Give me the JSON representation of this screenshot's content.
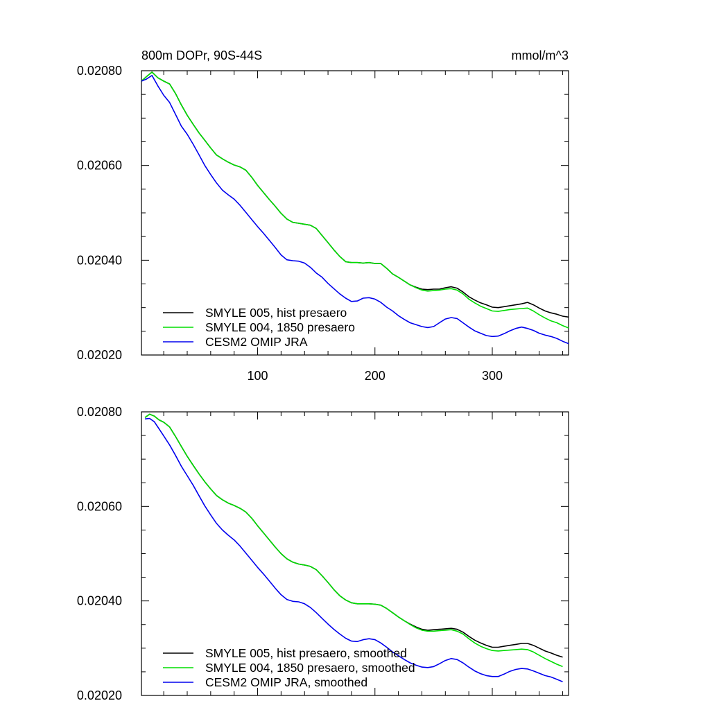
{
  "chart_data": [
    {
      "type": "line",
      "title": "800m DOPr, 90S-44S",
      "units": "mmol/m^3",
      "xlim": [
        1,
        365
      ],
      "ylim": [
        0.0202,
        0.0208
      ],
      "xticks": [
        100,
        200,
        300
      ],
      "xtick_labels": [
        "100",
        "200",
        "300"
      ],
      "yticks": [
        0.0202,
        0.0204,
        0.0206,
        0.0208
      ],
      "ytick_labels": [
        "0.02020",
        "0.02040",
        "0.02060",
        "0.02080"
      ],
      "legend_position": "bottom-left",
      "series": [
        {
          "name": "SMYLE 005, hist presaero",
          "color": "#000000",
          "x": [
            1,
            5,
            10,
            15,
            20,
            25,
            30,
            35,
            40,
            45,
            50,
            55,
            60,
            65,
            70,
            75,
            80,
            85,
            90,
            95,
            100,
            105,
            110,
            115,
            120,
            125,
            130,
            135,
            140,
            145,
            150,
            155,
            160,
            165,
            170,
            175,
            180,
            185,
            190,
            195,
            200,
            205,
            210,
            215,
            220,
            225,
            230,
            235,
            240,
            245,
            250,
            255,
            260,
            265,
            270,
            275,
            280,
            285,
            290,
            295,
            300,
            305,
            310,
            315,
            320,
            325,
            330,
            335,
            340,
            345,
            350,
            355,
            360,
            365
          ],
          "y": [
            0.020778,
            0.020787,
            0.020797,
            0.020785,
            0.020778,
            0.020772,
            0.020752,
            0.020728,
            0.020706,
            0.020687,
            0.020669,
            0.020653,
            0.020637,
            0.020622,
            0.020614,
            0.020607,
            0.020601,
            0.020597,
            0.02059,
            0.020575,
            0.020558,
            0.020543,
            0.020528,
            0.020514,
            0.020499,
            0.020487,
            0.02048,
            0.020478,
            0.020476,
            0.020474,
            0.020467,
            0.020452,
            0.020437,
            0.020422,
            0.020408,
            0.020397,
            0.020395,
            0.020395,
            0.020394,
            0.020395,
            0.020393,
            0.020393,
            0.020383,
            0.020371,
            0.020364,
            0.020356,
            0.020348,
            0.020343,
            0.020339,
            0.020338,
            0.020339,
            0.020339,
            0.020342,
            0.020344,
            0.020341,
            0.020333,
            0.020323,
            0.020316,
            0.02031,
            0.020306,
            0.020301,
            0.0203,
            0.020302,
            0.020304,
            0.020306,
            0.020308,
            0.020311,
            0.020306,
            0.020299,
            0.020293,
            0.020289,
            0.020286,
            0.020282,
            0.02028
          ]
        },
        {
          "name": "SMYLE 004, 1850 presaero",
          "color": "#00dd00",
          "x": [
            1,
            5,
            10,
            15,
            20,
            25,
            30,
            35,
            40,
            45,
            50,
            55,
            60,
            65,
            70,
            75,
            80,
            85,
            90,
            95,
            100,
            105,
            110,
            115,
            120,
            125,
            130,
            135,
            140,
            145,
            150,
            155,
            160,
            165,
            170,
            175,
            180,
            185,
            190,
            195,
            200,
            205,
            210,
            215,
            220,
            225,
            230,
            235,
            240,
            245,
            250,
            255,
            260,
            265,
            270,
            275,
            280,
            285,
            290,
            295,
            300,
            305,
            310,
            315,
            320,
            325,
            330,
            335,
            340,
            345,
            350,
            355,
            360,
            365
          ],
          "y": [
            0.020778,
            0.020787,
            0.020797,
            0.020785,
            0.020778,
            0.020772,
            0.020752,
            0.020728,
            0.020706,
            0.020687,
            0.020669,
            0.020653,
            0.020637,
            0.020622,
            0.020614,
            0.020607,
            0.020601,
            0.020597,
            0.02059,
            0.020575,
            0.020558,
            0.020543,
            0.020528,
            0.020514,
            0.020499,
            0.020487,
            0.02048,
            0.020478,
            0.020476,
            0.020474,
            0.020467,
            0.020452,
            0.020437,
            0.020422,
            0.020408,
            0.020397,
            0.020395,
            0.020395,
            0.020394,
            0.020395,
            0.020393,
            0.020393,
            0.020383,
            0.020371,
            0.020364,
            0.020356,
            0.020348,
            0.020342,
            0.020337,
            0.020335,
            0.020336,
            0.020337,
            0.020339,
            0.02034,
            0.020337,
            0.020329,
            0.020318,
            0.02031,
            0.020303,
            0.020298,
            0.020293,
            0.020292,
            0.020294,
            0.020296,
            0.020297,
            0.020298,
            0.020299,
            0.020293,
            0.020285,
            0.020278,
            0.020272,
            0.020268,
            0.020262,
            0.020257
          ]
        },
        {
          "name": "CESM2 OMIP JRA",
          "color": "#0000ee",
          "x": [
            1,
            5,
            10,
            15,
            20,
            25,
            30,
            35,
            40,
            45,
            50,
            55,
            60,
            65,
            70,
            75,
            80,
            85,
            90,
            95,
            100,
            105,
            110,
            115,
            120,
            125,
            130,
            135,
            140,
            145,
            150,
            155,
            160,
            165,
            170,
            175,
            180,
            185,
            190,
            195,
            200,
            205,
            210,
            215,
            220,
            225,
            230,
            235,
            240,
            245,
            250,
            255,
            260,
            265,
            270,
            275,
            280,
            285,
            290,
            295,
            300,
            305,
            310,
            315,
            320,
            325,
            330,
            335,
            340,
            345,
            350,
            355,
            360,
            365
          ],
          "y": [
            0.020778,
            0.020782,
            0.02079,
            0.020768,
            0.020748,
            0.020733,
            0.020708,
            0.020683,
            0.020666,
            0.020645,
            0.020623,
            0.0206,
            0.020581,
            0.020563,
            0.020548,
            0.020538,
            0.020529,
            0.020516,
            0.020501,
            0.020486,
            0.020471,
            0.020457,
            0.020442,
            0.020427,
            0.020411,
            0.020401,
            0.020399,
            0.020398,
            0.020394,
            0.020385,
            0.020373,
            0.020364,
            0.020351,
            0.02034,
            0.020329,
            0.02032,
            0.020313,
            0.020314,
            0.02032,
            0.020321,
            0.020318,
            0.020311,
            0.020301,
            0.020293,
            0.020283,
            0.020275,
            0.020268,
            0.020264,
            0.02026,
            0.020258,
            0.02026,
            0.020268,
            0.020276,
            0.020279,
            0.020277,
            0.020268,
            0.020259,
            0.020251,
            0.020246,
            0.020241,
            0.020239,
            0.02024,
            0.020245,
            0.020251,
            0.020256,
            0.020259,
            0.020256,
            0.020252,
            0.020246,
            0.020242,
            0.020239,
            0.020235,
            0.020229,
            0.020224
          ]
        }
      ]
    },
    {
      "type": "line",
      "xlim": [
        1,
        365
      ],
      "ylim": [
        0.0202,
        0.0208
      ],
      "xticks": [
        100,
        200,
        300
      ],
      "yticks": [
        0.0202,
        0.0204,
        0.0206,
        0.0208
      ],
      "ytick_labels": [
        "0.02020",
        "0.02040",
        "0.02060",
        "0.02080"
      ],
      "legend_position": "bottom-left",
      "series": [
        {
          "name": "SMYLE 005, hist presaero, smoothed",
          "color": "#000000",
          "x": [
            4,
            8,
            12,
            16,
            20,
            25,
            30,
            35,
            40,
            45,
            50,
            55,
            60,
            65,
            70,
            75,
            80,
            85,
            90,
            95,
            100,
            105,
            110,
            115,
            120,
            125,
            130,
            135,
            140,
            145,
            150,
            155,
            160,
            165,
            170,
            175,
            180,
            185,
            190,
            195,
            200,
            205,
            210,
            215,
            220,
            225,
            230,
            235,
            240,
            245,
            250,
            255,
            260,
            265,
            270,
            275,
            280,
            285,
            290,
            295,
            300,
            305,
            310,
            315,
            320,
            325,
            330,
            335,
            340,
            345,
            350,
            355,
            360
          ],
          "y": [
            0.020788,
            0.020795,
            0.020791,
            0.020783,
            0.020778,
            0.020768,
            0.020748,
            0.020727,
            0.020706,
            0.020687,
            0.020669,
            0.020652,
            0.020637,
            0.020623,
            0.020614,
            0.020607,
            0.020602,
            0.020596,
            0.020588,
            0.020575,
            0.020559,
            0.020544,
            0.020529,
            0.020514,
            0.0205,
            0.020489,
            0.020482,
            0.020478,
            0.020476,
            0.020473,
            0.020466,
            0.020453,
            0.020439,
            0.020424,
            0.020411,
            0.020402,
            0.020396,
            0.020394,
            0.020394,
            0.020394,
            0.020393,
            0.020391,
            0.020384,
            0.020375,
            0.020366,
            0.020358,
            0.020351,
            0.020345,
            0.02034,
            0.020338,
            0.020339,
            0.02034,
            0.020341,
            0.020342,
            0.02034,
            0.020334,
            0.020325,
            0.020317,
            0.020311,
            0.020306,
            0.020302,
            0.020302,
            0.020304,
            0.020306,
            0.020308,
            0.02031,
            0.02031,
            0.020306,
            0.0203,
            0.020294,
            0.02029,
            0.020285,
            0.020281
          ]
        },
        {
          "name": "SMYLE 004, 1850 presaero, smoothed",
          "color": "#00dd00",
          "x": [
            4,
            8,
            12,
            16,
            20,
            25,
            30,
            35,
            40,
            45,
            50,
            55,
            60,
            65,
            70,
            75,
            80,
            85,
            90,
            95,
            100,
            105,
            110,
            115,
            120,
            125,
            130,
            135,
            140,
            145,
            150,
            155,
            160,
            165,
            170,
            175,
            180,
            185,
            190,
            195,
            200,
            205,
            210,
            215,
            220,
            225,
            230,
            235,
            240,
            245,
            250,
            255,
            260,
            265,
            270,
            275,
            280,
            285,
            290,
            295,
            300,
            305,
            310,
            315,
            320,
            325,
            330,
            335,
            340,
            345,
            350,
            355,
            360
          ],
          "y": [
            0.020788,
            0.020795,
            0.020791,
            0.020783,
            0.020778,
            0.020768,
            0.020748,
            0.020727,
            0.020706,
            0.020687,
            0.020669,
            0.020652,
            0.020637,
            0.020623,
            0.020614,
            0.020607,
            0.020602,
            0.020596,
            0.020588,
            0.020575,
            0.020559,
            0.020544,
            0.020529,
            0.020514,
            0.0205,
            0.020489,
            0.020482,
            0.020478,
            0.020476,
            0.020473,
            0.020466,
            0.020453,
            0.020439,
            0.020424,
            0.020411,
            0.020402,
            0.020396,
            0.020394,
            0.020394,
            0.020394,
            0.020393,
            0.020391,
            0.020384,
            0.020375,
            0.020366,
            0.020358,
            0.02035,
            0.020343,
            0.020338,
            0.020336,
            0.020336,
            0.020337,
            0.020338,
            0.020339,
            0.020336,
            0.02033,
            0.02032,
            0.020311,
            0.020304,
            0.020299,
            0.020295,
            0.020294,
            0.020295,
            0.020296,
            0.020297,
            0.020298,
            0.020297,
            0.020292,
            0.020285,
            0.020278,
            0.020272,
            0.020266,
            0.020261
          ]
        },
        {
          "name": "CESM2 OMIP JRA, smoothed",
          "color": "#0000ee",
          "x": [
            4,
            8,
            12,
            16,
            20,
            25,
            30,
            35,
            40,
            45,
            50,
            55,
            60,
            65,
            70,
            75,
            80,
            85,
            90,
            95,
            100,
            105,
            110,
            115,
            120,
            125,
            130,
            135,
            140,
            145,
            150,
            155,
            160,
            165,
            170,
            175,
            180,
            185,
            190,
            195,
            200,
            205,
            210,
            215,
            220,
            225,
            230,
            235,
            240,
            245,
            250,
            255,
            260,
            265,
            270,
            275,
            280,
            285,
            290,
            295,
            300,
            305,
            310,
            315,
            320,
            325,
            330,
            335,
            340,
            345,
            350,
            355,
            360
          ],
          "y": [
            0.020785,
            0.020786,
            0.020779,
            0.020764,
            0.020749,
            0.02073,
            0.020708,
            0.020685,
            0.020665,
            0.020645,
            0.020623,
            0.020601,
            0.020582,
            0.020564,
            0.02055,
            0.020539,
            0.020529,
            0.020516,
            0.020501,
            0.020486,
            0.020471,
            0.020457,
            0.020442,
            0.020427,
            0.020413,
            0.020403,
            0.020399,
            0.020398,
            0.020394,
            0.020386,
            0.020375,
            0.020363,
            0.020351,
            0.02034,
            0.02033,
            0.020321,
            0.020315,
            0.020314,
            0.020318,
            0.02032,
            0.020318,
            0.020311,
            0.020302,
            0.020292,
            0.020284,
            0.020276,
            0.020269,
            0.020264,
            0.02026,
            0.020259,
            0.020261,
            0.020267,
            0.020274,
            0.020278,
            0.020276,
            0.020269,
            0.02026,
            0.020252,
            0.020246,
            0.020242,
            0.02024,
            0.02024,
            0.020245,
            0.020251,
            0.020255,
            0.020257,
            0.020256,
            0.020252,
            0.020247,
            0.020242,
            0.020239,
            0.020234,
            0.020229
          ]
        }
      ]
    }
  ]
}
